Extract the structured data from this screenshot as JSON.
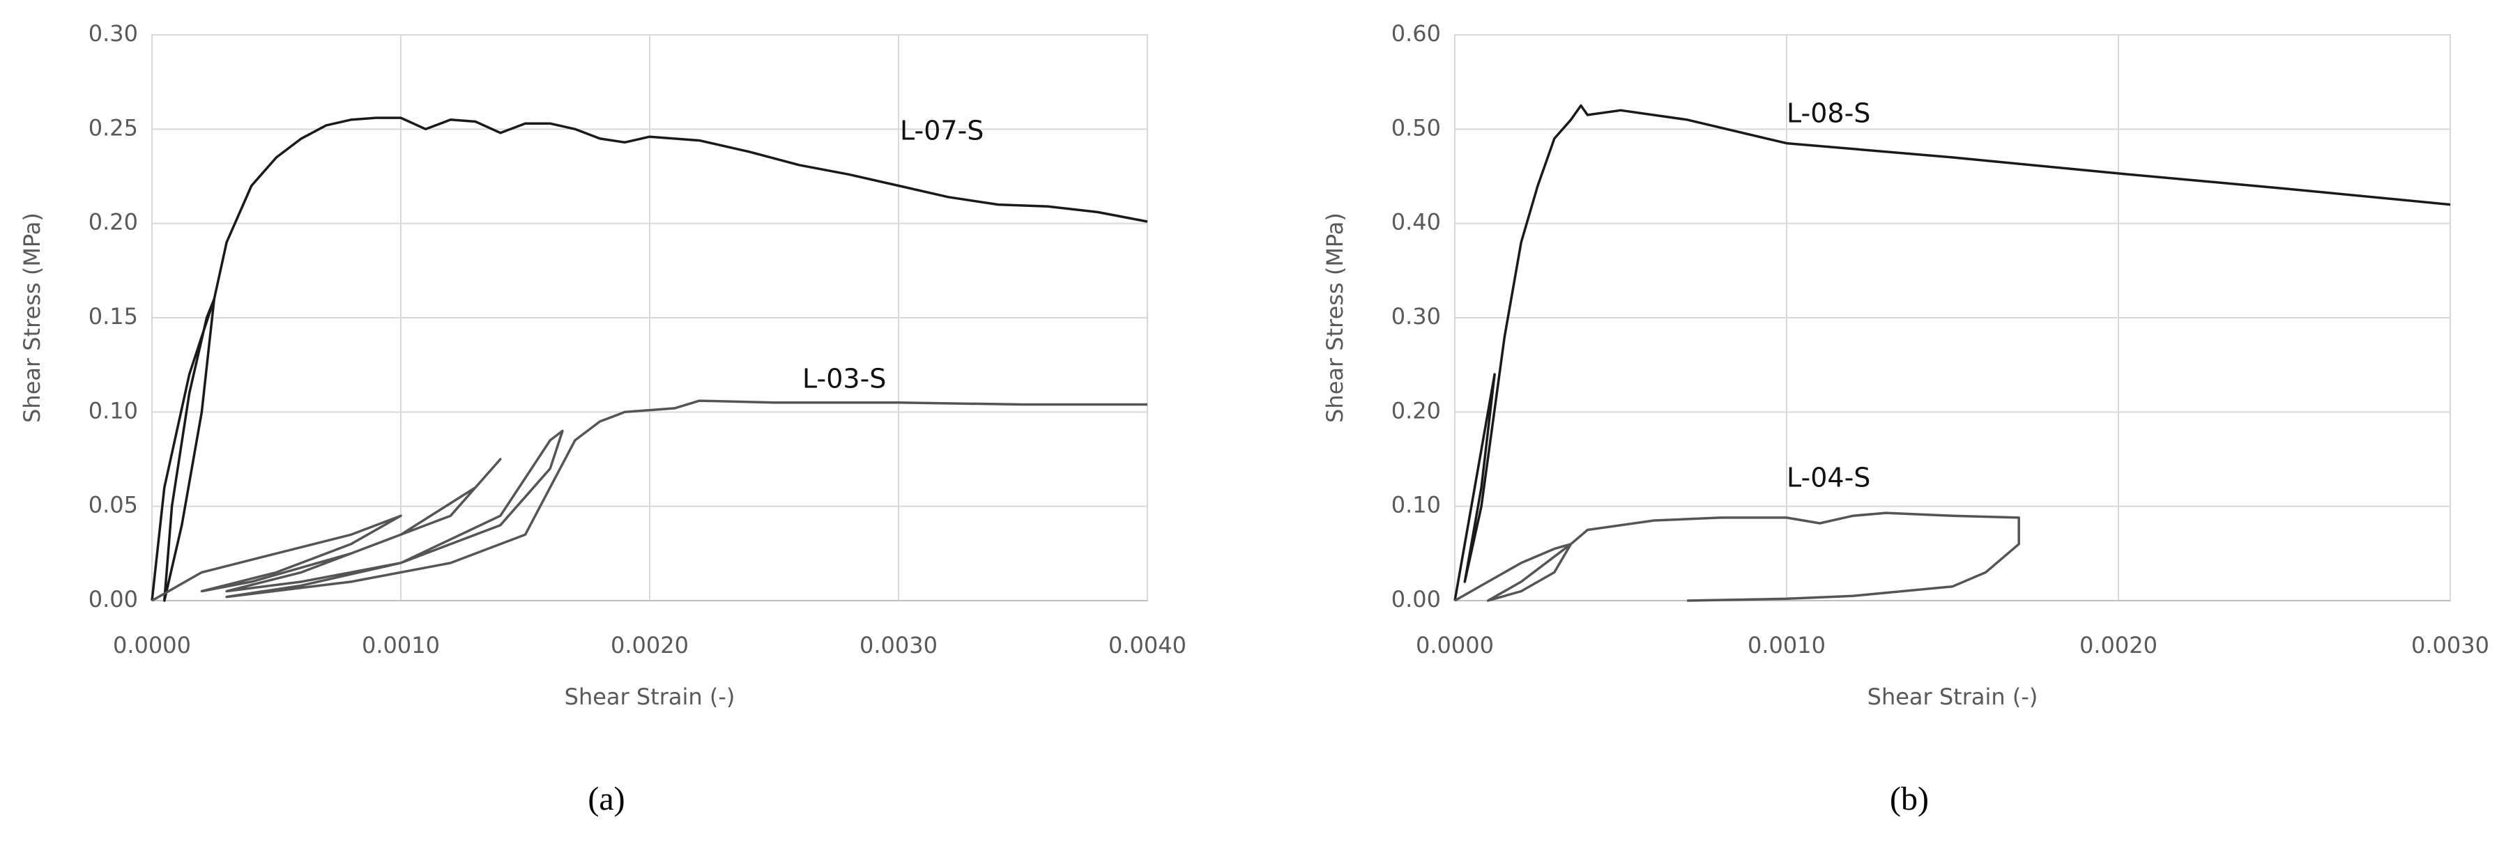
{
  "chart_data": [
    {
      "type": "line",
      "caption": "(a)",
      "x_label": "Shear Strain (-)",
      "y_label": "Shear Stress (MPa)",
      "xlim": [
        0,
        0.004
      ],
      "xticks": [
        {
          "value": 0,
          "label": "0.0000"
        },
        {
          "value": 0.001,
          "label": "0.0010"
        },
        {
          "value": 0.002,
          "label": "0.0020"
        },
        {
          "value": 0.003,
          "label": "0.0030"
        },
        {
          "value": 0.004,
          "label": "0.0040"
        }
      ],
      "ylim": [
        0,
        0.3
      ],
      "yticks": [
        {
          "value": 0,
          "label": "0.00"
        },
        {
          "value": 0.05,
          "label": "0.05"
        },
        {
          "value": 0.1,
          "label": "0.10"
        },
        {
          "value": 0.15,
          "label": "0.15"
        },
        {
          "value": 0.2,
          "label": "0.20"
        },
        {
          "value": 0.25,
          "label": "0.25"
        },
        {
          "value": 0.3,
          "label": "0.30"
        }
      ],
      "grid": true,
      "series": [
        {
          "name": "L-07-S",
          "color": "#1a1a1a",
          "x": [
            0,
            5e-05,
            0.0001,
            0.00015,
            0.0002,
            0.00025,
            0.0002,
            0.00012,
            5e-05,
            8e-05,
            0.00015,
            0.00022,
            0.00025,
            0.0003,
            0.0004,
            0.0005,
            0.0006,
            0.0007,
            0.0008,
            0.0009,
            0.001,
            0.0011,
            0.0012,
            0.0013,
            0.0014,
            0.0015,
            0.0016,
            0.0017,
            0.0018,
            0.0019,
            0.002,
            0.0022,
            0.0024,
            0.0026,
            0.0028,
            0.003,
            0.0032,
            0.0034,
            0.0036,
            0.0038,
            0.004
          ],
          "values": [
            0,
            0.06,
            0.09,
            0.12,
            0.14,
            0.16,
            0.1,
            0.04,
            0,
            0.05,
            0.11,
            0.15,
            0.16,
            0.19,
            0.22,
            0.235,
            0.245,
            0.252,
            0.255,
            0.256,
            0.256,
            0.25,
            0.255,
            0.254,
            0.248,
            0.253,
            0.253,
            0.25,
            0.245,
            0.243,
            0.246,
            0.244,
            0.238,
            0.231,
            0.226,
            0.22,
            0.214,
            0.21,
            0.209,
            0.206,
            0.201
          ]
        },
        {
          "name": "L-03-S",
          "color": "#555555",
          "x": [
            0,
            0.0002,
            0.0005,
            0.0008,
            0.001,
            0.0008,
            0.0005,
            0.0002,
            0.0004,
            0.0008,
            0.0012,
            0.0014,
            0.0013,
            0.001,
            0.0006,
            0.0003,
            0.0006,
            0.001,
            0.0014,
            0.0016,
            0.00165,
            0.0016,
            0.0014,
            0.001,
            0.0006,
            0.0003,
            0.0008,
            0.0012,
            0.0015,
            0.0016,
            0.0017,
            0.0018,
            0.0019,
            0.002,
            0.0021,
            0.0022,
            0.0025,
            0.003,
            0.0035,
            0.004
          ],
          "values": [
            0,
            0.015,
            0.025,
            0.035,
            0.045,
            0.03,
            0.015,
            0.005,
            0.01,
            0.025,
            0.045,
            0.075,
            0.06,
            0.035,
            0.015,
            0.005,
            0.01,
            0.02,
            0.045,
            0.085,
            0.09,
            0.07,
            0.04,
            0.02,
            0.008,
            0.002,
            0.01,
            0.02,
            0.035,
            0.06,
            0.085,
            0.095,
            0.1,
            0.101,
            0.102,
            0.106,
            0.105,
            0.105,
            0.104,
            0.104
          ]
        }
      ]
    },
    {
      "type": "line",
      "caption": "(b)",
      "x_label": "Shear Strain (-)",
      "y_label": "Shear Stress (MPa)",
      "xlim": [
        0,
        0.003
      ],
      "xticks": [
        {
          "value": 0,
          "label": "0.0000"
        },
        {
          "value": 0.001,
          "label": "0.0010"
        },
        {
          "value": 0.002,
          "label": "0.0020"
        },
        {
          "value": 0.003,
          "label": "0.0030"
        }
      ],
      "ylim": [
        0,
        0.6
      ],
      "yticks": [
        {
          "value": 0,
          "label": "0.00"
        },
        {
          "value": 0.1,
          "label": "0.10"
        },
        {
          "value": 0.2,
          "label": "0.20"
        },
        {
          "value": 0.3,
          "label": "0.30"
        },
        {
          "value": 0.4,
          "label": "0.40"
        },
        {
          "value": 0.5,
          "label": "0.50"
        },
        {
          "value": 0.6,
          "label": "0.60"
        }
      ],
      "grid": true,
      "series": [
        {
          "name": "L-08-S",
          "color": "#1a1a1a",
          "x": [
            0,
            5e-05,
            0.0001,
            0.00012,
            8e-05,
            3e-05,
            8e-05,
            0.00015,
            0.0002,
            0.00025,
            0.0003,
            0.00035,
            0.00038,
            0.0004,
            0.0005,
            0.0007,
            0.001,
            0.0015,
            0.002,
            0.0025,
            0.003
          ],
          "values": [
            0,
            0.1,
            0.2,
            0.24,
            0.12,
            0.02,
            0.1,
            0.28,
            0.38,
            0.44,
            0.49,
            0.51,
            0.525,
            0.515,
            0.52,
            0.51,
            0.485,
            0.47,
            0.453,
            0.437,
            0.42
          ]
        },
        {
          "name": "L-04-S",
          "color": "#555555",
          "x": [
            0,
            0.0001,
            0.0002,
            0.0003,
            0.00035,
            0.0003,
            0.0002,
            0.0001,
            0.0002,
            0.00035,
            0.0004,
            0.0006,
            0.0008,
            0.001,
            0.0011,
            0.0012,
            0.0013,
            0.0015,
            0.0017,
            0.0017,
            0.0016,
            0.0015,
            0.0012,
            0.001,
            0.0007
          ],
          "values": [
            0,
            0.02,
            0.04,
            0.055,
            0.06,
            0.03,
            0.01,
            0,
            0.02,
            0.06,
            0.075,
            0.085,
            0.088,
            0.088,
            0.082,
            0.09,
            0.093,
            0.09,
            0.088,
            0.06,
            0.03,
            0.015,
            0.005,
            0.002,
            0
          ]
        }
      ]
    }
  ]
}
